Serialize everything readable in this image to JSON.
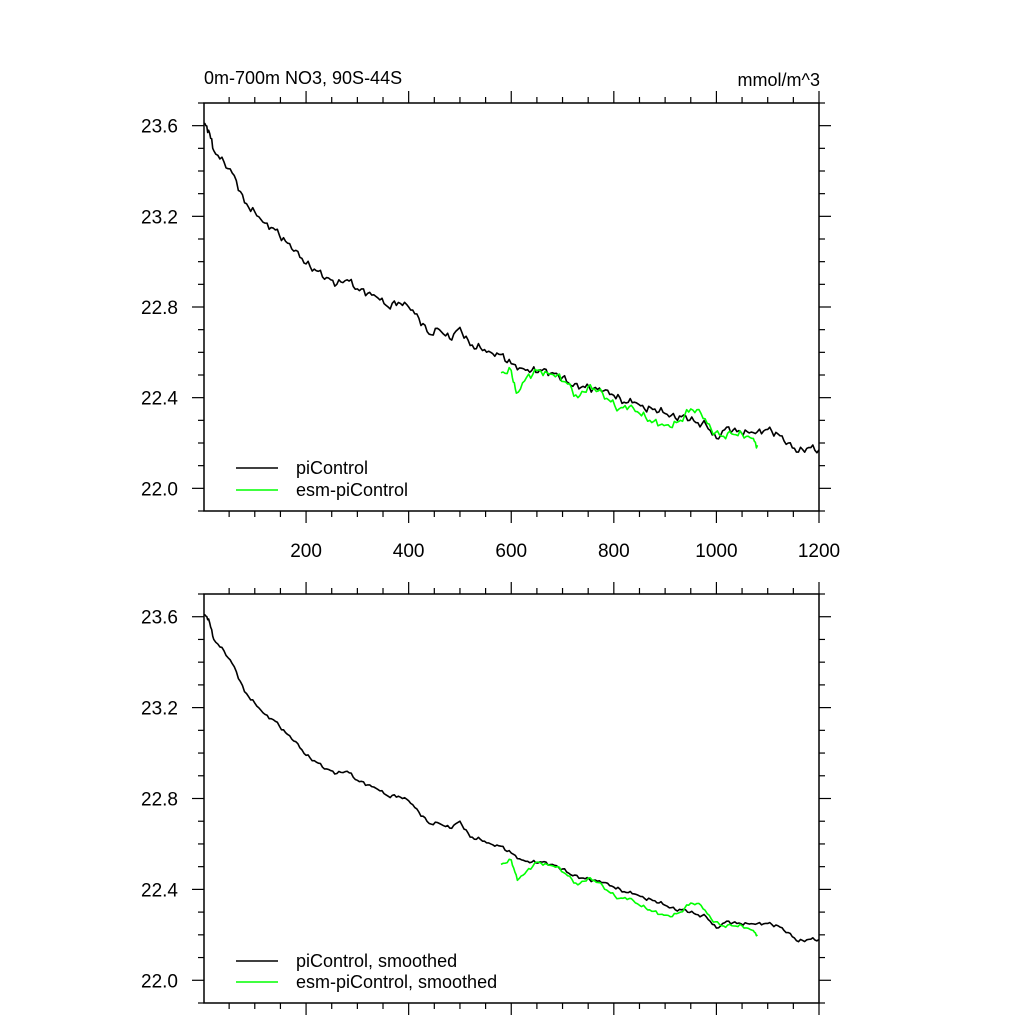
{
  "chart_data": [
    {
      "type": "line",
      "title": "0m-700m NO3, 90S-44S",
      "units": "mmol/m^3",
      "xlim": [
        1,
        1200
      ],
      "ylim": [
        21.9,
        23.7
      ],
      "yticks": [
        "22.0",
        "22.4",
        "22.8",
        "23.2",
        "23.6"
      ],
      "xticks": [
        "200",
        "400",
        "600",
        "800",
        "1000",
        "1200"
      ],
      "legend": [
        "piControl",
        "esm-piControl"
      ],
      "series": [
        {
          "name": "piControl",
          "color": "#000000",
          "points": [
            [
              1,
              23.61
            ],
            [
              10,
              23.58
            ],
            [
              20,
              23.49
            ],
            [
              40,
              23.44
            ],
            [
              60,
              23.38
            ],
            [
              80,
              23.26
            ],
            [
              100,
              23.22
            ],
            [
              120,
              23.17
            ],
            [
              140,
              23.14
            ],
            [
              160,
              23.09
            ],
            [
              180,
              23.05
            ],
            [
              200,
              22.99
            ],
            [
              220,
              22.96
            ],
            [
              240,
              22.93
            ],
            [
              260,
              22.9
            ],
            [
              280,
              22.92
            ],
            [
              300,
              22.88
            ],
            [
              320,
              22.86
            ],
            [
              340,
              22.84
            ],
            [
              360,
              22.8
            ],
            [
              380,
              22.82
            ],
            [
              400,
              22.8
            ],
            [
              420,
              22.75
            ],
            [
              440,
              22.68
            ],
            [
              460,
              22.7
            ],
            [
              480,
              22.66
            ],
            [
              500,
              22.71
            ],
            [
              520,
              22.63
            ],
            [
              540,
              22.62
            ],
            [
              560,
              22.6
            ],
            [
              580,
              22.59
            ],
            [
              600,
              22.55
            ],
            [
              620,
              22.53
            ],
            [
              640,
              22.52
            ],
            [
              660,
              22.52
            ],
            [
              680,
              22.51
            ],
            [
              700,
              22.49
            ],
            [
              720,
              22.45
            ],
            [
              740,
              22.45
            ],
            [
              760,
              22.44
            ],
            [
              780,
              22.43
            ],
            [
              800,
              22.41
            ],
            [
              820,
              22.38
            ],
            [
              840,
              22.38
            ],
            [
              860,
              22.35
            ],
            [
              880,
              22.35
            ],
            [
              900,
              22.33
            ],
            [
              920,
              22.31
            ],
            [
              940,
              22.32
            ],
            [
              960,
              22.29
            ],
            [
              980,
              22.28
            ],
            [
              1000,
              22.22
            ],
            [
              1020,
              22.27
            ],
            [
              1040,
              22.25
            ],
            [
              1060,
              22.25
            ],
            [
              1080,
              22.25
            ],
            [
              1100,
              22.26
            ],
            [
              1120,
              22.24
            ],
            [
              1140,
              22.2
            ],
            [
              1160,
              22.16
            ],
            [
              1180,
              22.18
            ],
            [
              1200,
              22.17
            ]
          ]
        },
        {
          "name": "esm-piControl",
          "color": "#00ff00",
          "points": [
            [
              580,
              22.51
            ],
            [
              600,
              22.52
            ],
            [
              610,
              22.42
            ],
            [
              630,
              22.49
            ],
            [
              650,
              22.52
            ],
            [
              670,
              22.51
            ],
            [
              690,
              22.5
            ],
            [
              710,
              22.46
            ],
            [
              730,
              22.4
            ],
            [
              750,
              22.45
            ],
            [
              770,
              22.43
            ],
            [
              790,
              22.39
            ],
            [
              810,
              22.35
            ],
            [
              830,
              22.36
            ],
            [
              850,
              22.33
            ],
            [
              870,
              22.3
            ],
            [
              890,
              22.28
            ],
            [
              910,
              22.27
            ],
            [
              930,
              22.3
            ],
            [
              950,
              22.35
            ],
            [
              970,
              22.33
            ],
            [
              990,
              22.26
            ],
            [
              1010,
              22.23
            ],
            [
              1030,
              22.24
            ],
            [
              1050,
              22.24
            ],
            [
              1070,
              22.22
            ],
            [
              1080,
              22.19
            ]
          ]
        }
      ]
    },
    {
      "type": "line",
      "xlim": [
        1,
        1200
      ],
      "ylim": [
        21.9,
        23.7
      ],
      "yticks": [
        "22.0",
        "22.4",
        "22.8",
        "23.2",
        "23.6"
      ],
      "legend": [
        "piControl, smoothed",
        "esm-piControl, smoothed"
      ],
      "series": [
        {
          "name": "piControl, smoothed",
          "color": "#000000",
          "points": [
            [
              1,
              23.61
            ],
            [
              10,
              23.59
            ],
            [
              20,
              23.5
            ],
            [
              40,
              23.45
            ],
            [
              60,
              23.38
            ],
            [
              80,
              23.27
            ],
            [
              100,
              23.22
            ],
            [
              120,
              23.17
            ],
            [
              140,
              23.14
            ],
            [
              160,
              23.09
            ],
            [
              180,
              23.05
            ],
            [
              200,
              22.99
            ],
            [
              220,
              22.96
            ],
            [
              240,
              22.93
            ],
            [
              260,
              22.91
            ],
            [
              280,
              22.92
            ],
            [
              300,
              22.88
            ],
            [
              320,
              22.86
            ],
            [
              340,
              22.84
            ],
            [
              360,
              22.81
            ],
            [
              380,
              22.81
            ],
            [
              400,
              22.79
            ],
            [
              420,
              22.74
            ],
            [
              440,
              22.69
            ],
            [
              460,
              22.69
            ],
            [
              480,
              22.67
            ],
            [
              500,
              22.7
            ],
            [
              520,
              22.63
            ],
            [
              540,
              22.62
            ],
            [
              560,
              22.6
            ],
            [
              580,
              22.59
            ],
            [
              600,
              22.56
            ],
            [
              620,
              22.53
            ],
            [
              640,
              22.52
            ],
            [
              660,
              22.52
            ],
            [
              680,
              22.51
            ],
            [
              700,
              22.49
            ],
            [
              720,
              22.46
            ],
            [
              740,
              22.45
            ],
            [
              760,
              22.44
            ],
            [
              780,
              22.43
            ],
            [
              800,
              22.41
            ],
            [
              820,
              22.39
            ],
            [
              840,
              22.38
            ],
            [
              860,
              22.36
            ],
            [
              880,
              22.35
            ],
            [
              900,
              22.33
            ],
            [
              920,
              22.31
            ],
            [
              940,
              22.31
            ],
            [
              960,
              22.29
            ],
            [
              980,
              22.28
            ],
            [
              1000,
              22.23
            ],
            [
              1020,
              22.26
            ],
            [
              1040,
              22.25
            ],
            [
              1060,
              22.25
            ],
            [
              1080,
              22.25
            ],
            [
              1100,
              22.25
            ],
            [
              1120,
              22.24
            ],
            [
              1140,
              22.21
            ],
            [
              1160,
              22.17
            ],
            [
              1180,
              22.18
            ],
            [
              1200,
              22.18
            ]
          ]
        },
        {
          "name": "esm-piControl, smoothed",
          "color": "#00ff00",
          "points": [
            [
              580,
              22.51
            ],
            [
              600,
              22.53
            ],
            [
              612,
              22.44
            ],
            [
              630,
              22.48
            ],
            [
              650,
              22.52
            ],
            [
              670,
              22.51
            ],
            [
              690,
              22.5
            ],
            [
              710,
              22.46
            ],
            [
              730,
              22.42
            ],
            [
              750,
              22.45
            ],
            [
              770,
              22.43
            ],
            [
              790,
              22.39
            ],
            [
              810,
              22.36
            ],
            [
              830,
              22.36
            ],
            [
              850,
              22.33
            ],
            [
              870,
              22.31
            ],
            [
              890,
              22.29
            ],
            [
              910,
              22.28
            ],
            [
              930,
              22.3
            ],
            [
              950,
              22.34
            ],
            [
              970,
              22.33
            ],
            [
              990,
              22.27
            ],
            [
              1010,
              22.24
            ],
            [
              1030,
              22.24
            ],
            [
              1050,
              22.24
            ],
            [
              1070,
              22.22
            ],
            [
              1080,
              22.2
            ]
          ]
        }
      ]
    }
  ]
}
